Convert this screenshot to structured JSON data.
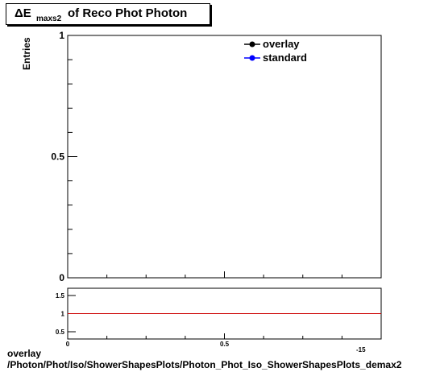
{
  "title": {
    "symbol": "ΔE",
    "subscript": "maxs2",
    "rest": "of Reco Phot Photon"
  },
  "footer": {
    "line1": "overlay",
    "line2": "/Photon/Phot/Iso/ShowerShapesPlots/Photon_Phot_Iso_ShowerShapesPlots_demax2"
  },
  "chart_data": [
    {
      "type": "line",
      "ylabel": "Entries",
      "xlim": [
        0,
        1
      ],
      "ylim": [
        0,
        1
      ],
      "y_ticks": [
        {
          "value": 0,
          "label": "0"
        },
        {
          "value": 0.5,
          "label": "0.5"
        },
        {
          "value": 1,
          "label": "1"
        }
      ],
      "legend_position": "top-right",
      "series": [
        {
          "name": "overlay",
          "color": "#000000",
          "x": [],
          "y": []
        },
        {
          "name": "standard",
          "color": "#0000ff",
          "x": [],
          "y": []
        }
      ]
    },
    {
      "type": "line",
      "xlim": [
        0,
        1
      ],
      "ylim": [
        0.3,
        1.7
      ],
      "x_ticks": [
        {
          "value": 0,
          "label": "0"
        },
        {
          "value": 0.5,
          "label": "0.5"
        }
      ],
      "y_ticks": [
        {
          "value": 0.5,
          "label": "0.5"
        },
        {
          "value": 1,
          "label": "1"
        },
        {
          "value": 1.5,
          "label": "1.5"
        }
      ],
      "axis_exponent_label": "-15",
      "reference_line": {
        "y": 1,
        "color": "#cc0000"
      }
    }
  ]
}
